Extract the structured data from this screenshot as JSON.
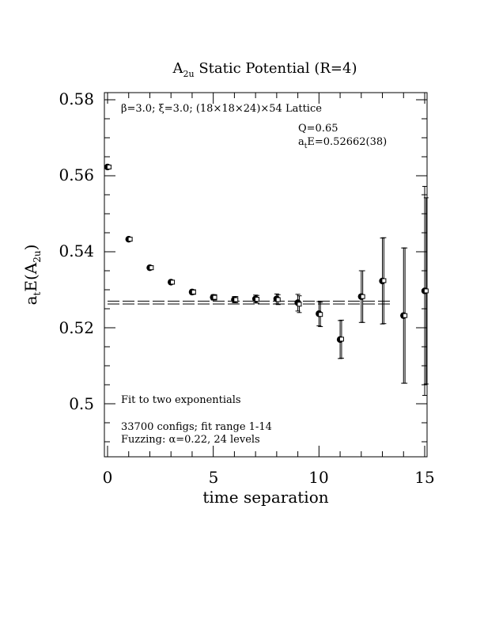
{
  "chart_data": {
    "type": "scatter",
    "title": {
      "main": "A",
      "sub": "2u",
      "rest": " Static Potential (R=4)"
    },
    "xlabel": "time separation",
    "ylabel": {
      "a": "a",
      "t": "t",
      "e": "E(A",
      "sub": "2u",
      "close": ")"
    },
    "xlim": [
      0,
      15
    ],
    "ylim": [
      0.486,
      0.581
    ],
    "xticks": [
      "0",
      "5",
      "10",
      "15"
    ],
    "yticks": [
      "0.5",
      "0.52",
      "0.54",
      "0.56",
      "0.58"
    ],
    "annotations": {
      "lattice": "β=3.0; ξ=3.0; (18×18×24)×54 Lattice",
      "q": "Q=0.65",
      "energy_a": "a",
      "energy_t": "t",
      "energy_rest": "E=0.52662(38)",
      "fit_type": "Fit to two exponentials",
      "configs": "33700 configs; fit range 1-14",
      "fuzzing": "Fuzzing: α=0.22, 24 levels"
    },
    "fit": {
      "value": 0.52662,
      "error": 0.00038,
      "x_range": [
        0,
        13.5
      ]
    },
    "series": [
      {
        "marker": "filled-circle",
        "points": [
          {
            "x": 0,
            "y": 0.5623,
            "err": 0.0004
          },
          {
            "x": 1,
            "y": 0.5433,
            "err": 0.0004
          },
          {
            "x": 2,
            "y": 0.5358,
            "err": 0.0005
          },
          {
            "x": 3,
            "y": 0.532,
            "err": 0.0005
          },
          {
            "x": 4,
            "y": 0.5294,
            "err": 0.0006
          },
          {
            "x": 5,
            "y": 0.528,
            "err": 0.0007
          },
          {
            "x": 6,
            "y": 0.5274,
            "err": 0.0008
          },
          {
            "x": 7,
            "y": 0.5276,
            "err": 0.001
          },
          {
            "x": 8,
            "y": 0.5276,
            "err": 0.0013
          },
          {
            "x": 9,
            "y": 0.5266,
            "err": 0.0022
          },
          {
            "x": 10,
            "y": 0.5237,
            "err": 0.0032
          },
          {
            "x": 11,
            "y": 0.5169,
            "err": 0.005
          },
          {
            "x": 12,
            "y": 0.5282,
            "err": 0.0068
          },
          {
            "x": 13,
            "y": 0.5323,
            "err": 0.0113
          },
          {
            "x": 14,
            "y": 0.5232,
            "err": 0.0178
          },
          {
            "x": 15,
            "y": 0.5297,
            "err": 0.0275
          }
        ]
      },
      {
        "marker": "open-square",
        "points": [
          {
            "x": 0.07,
            "y": 0.5623,
            "err": 0.0004
          },
          {
            "x": 1.07,
            "y": 0.5433,
            "err": 0.0004
          },
          {
            "x": 2.07,
            "y": 0.5358,
            "err": 0.0005
          },
          {
            "x": 3.07,
            "y": 0.532,
            "err": 0.0005
          },
          {
            "x": 4.07,
            "y": 0.5294,
            "err": 0.0006
          },
          {
            "x": 5.07,
            "y": 0.528,
            "err": 0.0007
          },
          {
            "x": 6.07,
            "y": 0.5274,
            "err": 0.0008
          },
          {
            "x": 7.07,
            "y": 0.5275,
            "err": 0.001
          },
          {
            "x": 8.07,
            "y": 0.5274,
            "err": 0.0013
          },
          {
            "x": 9.07,
            "y": 0.5262,
            "err": 0.0022
          },
          {
            "x": 10.07,
            "y": 0.5235,
            "err": 0.0032
          },
          {
            "x": 11.07,
            "y": 0.517,
            "err": 0.005
          },
          {
            "x": 12.07,
            "y": 0.5282,
            "err": 0.0068
          },
          {
            "x": 13.07,
            "y": 0.5324,
            "err": 0.0113
          },
          {
            "x": 14.07,
            "y": 0.5232,
            "err": 0.0178
          },
          {
            "x": 15.07,
            "y": 0.5297,
            "err": 0.0245
          }
        ]
      }
    ]
  }
}
